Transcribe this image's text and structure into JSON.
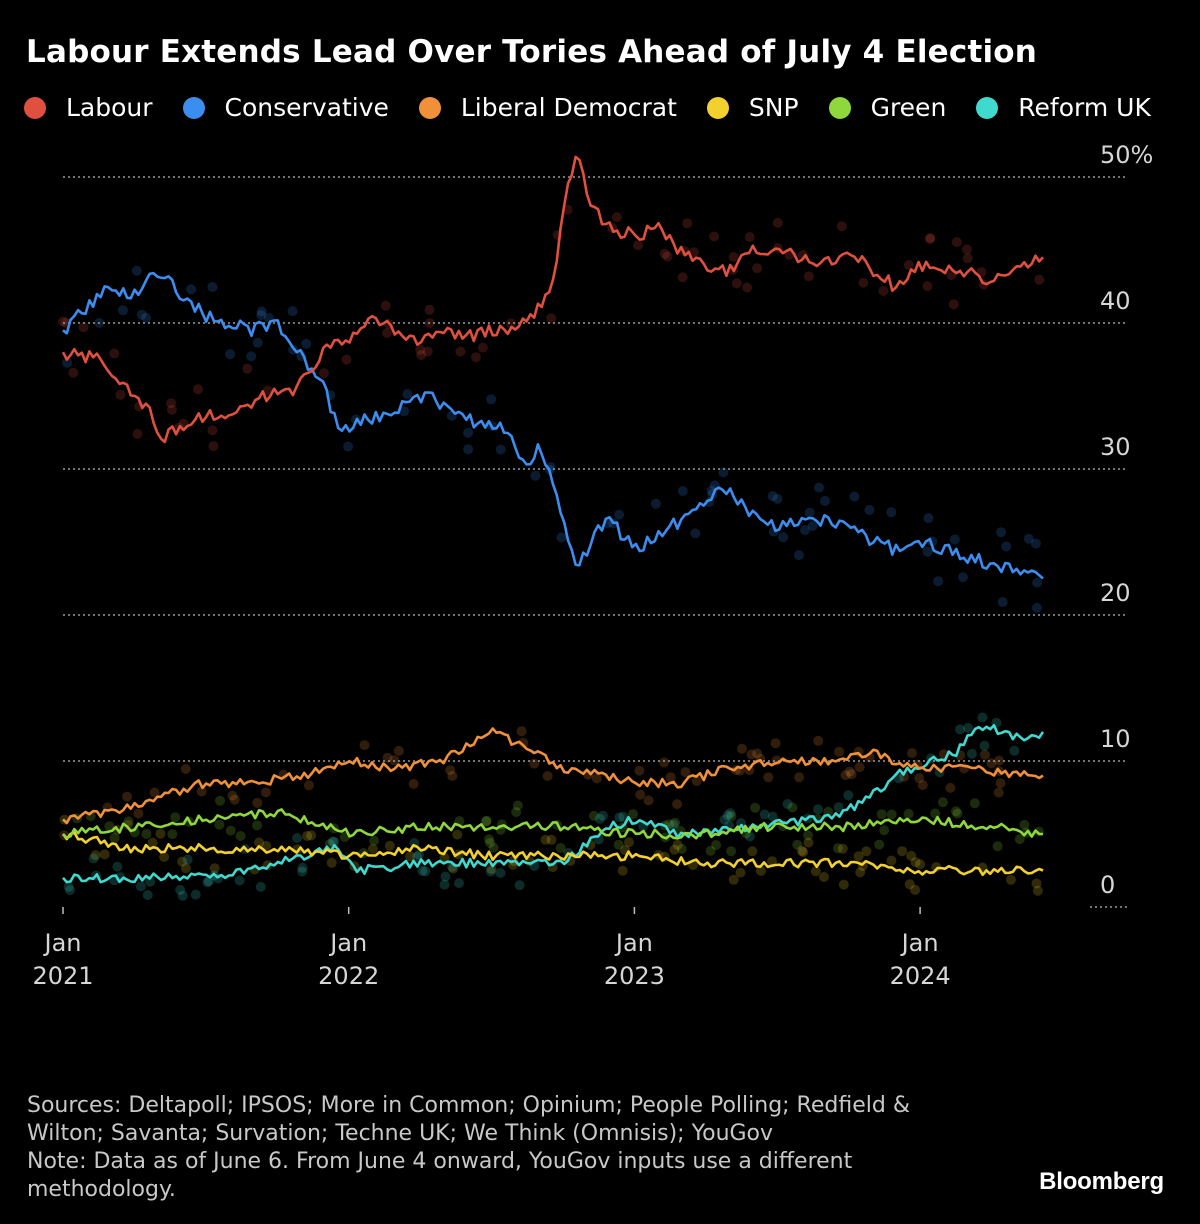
{
  "title": "Labour Extends Lead Over Tories Ahead of July 4 Election",
  "legend": [
    {
      "name": "Labour",
      "color": "#e0503f"
    },
    {
      "name": "Conservative",
      "color": "#3c8df0"
    },
    {
      "name": "Liberal Democrat",
      "color": "#f0913a"
    },
    {
      "name": "SNP",
      "color": "#f2d12f"
    },
    {
      "name": "Green",
      "color": "#8ed83c"
    },
    {
      "name": "Reform UK",
      "color": "#3fd9cf"
    }
  ],
  "footer": {
    "sources": "Sources: Deltapoll; IPSOS; More in Common; Opinium; People Polling; Redfield & Wilton; Savanta; Survation; Techne UK; We Think (Omnisis); YouGov",
    "note": "Note: Data as of June 6. From June 4 onward, YouGov inputs use a different methodology."
  },
  "brand": "Bloomberg",
  "chart_data": {
    "type": "line",
    "y_ticks": [
      {
        "value": 50,
        "label": "50%"
      },
      {
        "value": 40,
        "label": "40"
      },
      {
        "value": 30,
        "label": "30"
      },
      {
        "value": 20,
        "label": "20"
      },
      {
        "value": 10,
        "label": "10"
      },
      {
        "value": 0,
        "label": "0"
      }
    ],
    "ylim": [
      0,
      52
    ],
    "xlim": [
      "2021-01-01",
      "2024-06-06"
    ],
    "x_ticks": [
      {
        "date": "2021-01-01",
        "month": "Jan",
        "year": "2021"
      },
      {
        "date": "2022-01-01",
        "month": "Jan",
        "year": "2022"
      },
      {
        "date": "2023-01-01",
        "month": "Jan",
        "year": "2023"
      },
      {
        "date": "2024-01-01",
        "month": "Jan",
        "year": "2024"
      }
    ],
    "grid": true,
    "legend_placement": "top",
    "scatter_points": "individual polls shown as faint dots around each party's average line",
    "series": [
      {
        "name": "Labour",
        "color": "#e0503f",
        "points": [
          [
            "2021-01-01",
            38
          ],
          [
            "2021-02-15",
            37.5
          ],
          [
            "2021-03-20",
            36
          ],
          [
            "2021-04-20",
            34
          ],
          [
            "2021-05-10",
            32
          ],
          [
            "2021-06-01",
            33
          ],
          [
            "2021-07-01",
            33.5
          ],
          [
            "2021-08-01",
            34
          ],
          [
            "2021-09-15",
            35
          ],
          [
            "2021-10-25",
            35.5
          ],
          [
            "2021-12-01",
            38
          ],
          [
            "2022-01-15",
            39.5
          ],
          [
            "2022-02-01",
            40.5
          ],
          [
            "2022-03-01",
            39.5
          ],
          [
            "2022-04-01",
            38.5
          ],
          [
            "2022-05-01",
            39.5
          ],
          [
            "2022-06-01",
            39
          ],
          [
            "2022-07-01",
            39.5
          ],
          [
            "2022-08-01",
            39.5
          ],
          [
            "2022-09-01",
            41
          ],
          [
            "2022-09-20",
            43
          ],
          [
            "2022-10-05",
            49
          ],
          [
            "2022-10-20",
            51.5
          ],
          [
            "2022-11-05",
            48
          ],
          [
            "2022-12-01",
            46.5
          ],
          [
            "2023-01-01",
            46
          ],
          [
            "2023-02-01",
            46.5
          ],
          [
            "2023-03-01",
            45
          ],
          [
            "2023-04-01",
            44
          ],
          [
            "2023-05-01",
            43.5
          ],
          [
            "2023-06-01",
            45
          ],
          [
            "2023-07-01",
            45
          ],
          [
            "2023-08-01",
            44.5
          ],
          [
            "2023-09-01",
            44
          ],
          [
            "2023-10-01",
            45
          ],
          [
            "2023-11-01",
            43.5
          ],
          [
            "2023-12-01",
            42.5
          ],
          [
            "2024-01-01",
            44
          ],
          [
            "2024-02-01",
            43.5
          ],
          [
            "2024-03-01",
            43.5
          ],
          [
            "2024-04-01",
            43
          ],
          [
            "2024-05-01",
            43.5
          ],
          [
            "2024-06-06",
            44.5
          ]
        ]
      },
      {
        "name": "Conservative",
        "color": "#3c8df0",
        "points": [
          [
            "2021-01-01",
            39.5
          ],
          [
            "2021-02-01",
            41
          ],
          [
            "2021-03-01",
            42.5
          ],
          [
            "2021-04-01",
            42
          ],
          [
            "2021-05-01",
            43.5
          ],
          [
            "2021-06-01",
            42
          ],
          [
            "2021-07-01",
            40.5
          ],
          [
            "2021-08-01",
            40
          ],
          [
            "2021-09-01",
            39.5
          ],
          [
            "2021-10-01",
            40
          ],
          [
            "2021-11-01",
            38
          ],
          [
            "2021-12-01",
            35.5
          ],
          [
            "2021-12-20",
            32.5
          ],
          [
            "2022-01-20",
            33.5
          ],
          [
            "2022-02-15",
            33.5
          ],
          [
            "2022-03-15",
            34.5
          ],
          [
            "2022-04-15",
            35
          ],
          [
            "2022-05-15",
            34
          ],
          [
            "2022-06-15",
            33
          ],
          [
            "2022-07-15",
            33
          ],
          [
            "2022-08-01",
            32
          ],
          [
            "2022-08-15",
            30
          ],
          [
            "2022-09-01",
            31.5
          ],
          [
            "2022-09-15",
            30
          ],
          [
            "2022-10-01",
            27
          ],
          [
            "2022-10-20",
            23
          ],
          [
            "2022-11-10",
            25.5
          ],
          [
            "2022-12-01",
            26.5
          ],
          [
            "2023-01-01",
            24.5
          ],
          [
            "2023-02-01",
            25.5
          ],
          [
            "2023-03-01",
            26.5
          ],
          [
            "2023-04-01",
            28
          ],
          [
            "2023-05-01",
            28.5
          ],
          [
            "2023-06-01",
            27
          ],
          [
            "2023-07-01",
            26
          ],
          [
            "2023-08-01",
            26.5
          ],
          [
            "2023-09-01",
            26.5
          ],
          [
            "2023-10-01",
            26
          ],
          [
            "2023-11-01",
            25
          ],
          [
            "2023-12-01",
            24.5
          ],
          [
            "2024-01-01",
            25
          ],
          [
            "2024-02-01",
            24.5
          ],
          [
            "2024-03-01",
            24
          ],
          [
            "2024-04-01",
            23.5
          ],
          [
            "2024-05-01",
            23
          ],
          [
            "2024-06-06",
            22.5
          ]
        ]
      },
      {
        "name": "Liberal Democrat",
        "color": "#f0913a",
        "points": [
          [
            "2021-01-01",
            6
          ],
          [
            "2021-03-01",
            6.5
          ],
          [
            "2021-05-01",
            7.5
          ],
          [
            "2021-07-01",
            8.5
          ],
          [
            "2021-09-01",
            8.5
          ],
          [
            "2021-11-01",
            9
          ],
          [
            "2022-01-01",
            10
          ],
          [
            "2022-03-01",
            9.5
          ],
          [
            "2022-05-01",
            10
          ],
          [
            "2022-07-01",
            12
          ],
          [
            "2022-08-15",
            11
          ],
          [
            "2022-10-01",
            9.5
          ],
          [
            "2022-12-01",
            9
          ],
          [
            "2023-01-01",
            8.5
          ],
          [
            "2023-03-01",
            8.5
          ],
          [
            "2023-05-01",
            9.5
          ],
          [
            "2023-07-01",
            10
          ],
          [
            "2023-09-01",
            10
          ],
          [
            "2023-11-01",
            10.5
          ],
          [
            "2024-01-01",
            9.5
          ],
          [
            "2024-03-01",
            9.5
          ],
          [
            "2024-05-01",
            9
          ],
          [
            "2024-06-06",
            9
          ]
        ]
      },
      {
        "name": "SNP",
        "color": "#f2d12f",
        "points": [
          [
            "2021-01-01",
            5
          ],
          [
            "2021-04-01",
            4
          ],
          [
            "2021-07-01",
            4
          ],
          [
            "2021-10-01",
            4
          ],
          [
            "2022-01-01",
            3.5
          ],
          [
            "2022-04-01",
            4
          ],
          [
            "2022-07-01",
            3.5
          ],
          [
            "2022-10-01",
            3.5
          ],
          [
            "2023-01-01",
            3.5
          ],
          [
            "2023-04-01",
            3
          ],
          [
            "2023-07-01",
            3
          ],
          [
            "2023-10-01",
            3
          ],
          [
            "2024-01-01",
            2.5
          ],
          [
            "2024-04-01",
            2.5
          ],
          [
            "2024-06-06",
            2.5
          ]
        ]
      },
      {
        "name": "Green",
        "color": "#8ed83c",
        "points": [
          [
            "2021-01-01",
            5
          ],
          [
            "2021-04-01",
            5.5
          ],
          [
            "2021-07-01",
            6
          ],
          [
            "2021-10-01",
            6.5
          ],
          [
            "2022-01-01",
            5
          ],
          [
            "2022-04-01",
            5.5
          ],
          [
            "2022-07-01",
            5.5
          ],
          [
            "2022-10-01",
            5.5
          ],
          [
            "2023-01-01",
            5
          ],
          [
            "2023-04-01",
            5
          ],
          [
            "2023-07-01",
            5.5
          ],
          [
            "2023-10-01",
            5.5
          ],
          [
            "2024-01-01",
            6
          ],
          [
            "2024-04-01",
            5.5
          ],
          [
            "2024-06-06",
            5
          ]
        ]
      },
      {
        "name": "Reform UK",
        "color": "#3fd9cf",
        "points": [
          [
            "2021-01-01",
            2
          ],
          [
            "2021-04-01",
            2
          ],
          [
            "2021-07-01",
            2
          ],
          [
            "2021-10-01",
            3
          ],
          [
            "2021-12-15",
            4
          ],
          [
            "2022-01-15",
            2.5
          ],
          [
            "2022-04-01",
            3
          ],
          [
            "2022-07-01",
            3
          ],
          [
            "2022-10-01",
            3
          ],
          [
            "2022-12-01",
            5.5
          ],
          [
            "2023-01-01",
            6
          ],
          [
            "2023-03-01",
            5
          ],
          [
            "2023-06-01",
            5.5
          ],
          [
            "2023-09-01",
            6
          ],
          [
            "2023-10-15",
            7
          ],
          [
            "2023-12-01",
            9
          ],
          [
            "2024-01-15",
            10
          ],
          [
            "2024-02-15",
            10.5
          ],
          [
            "2024-03-15",
            12.5
          ],
          [
            "2024-04-15",
            12
          ],
          [
            "2024-05-15",
            11.5
          ],
          [
            "2024-06-06",
            12
          ]
        ]
      }
    ]
  }
}
